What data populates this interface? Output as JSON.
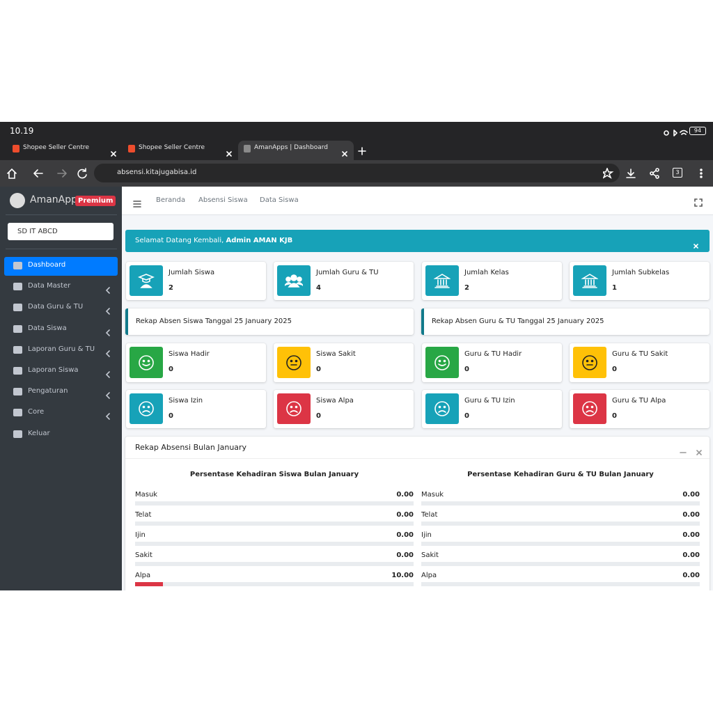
{
  "status_bar": {
    "time": "10.19",
    "battery": "94"
  },
  "browser": {
    "tabs": [
      "Shopee Seller Centre",
      "Shopee Seller Centre",
      "AmanApps | Dashboard"
    ],
    "url": "absensi.kitajugabisa.id",
    "tab_count": "3"
  },
  "sidebar": {
    "brand": "AmanApps",
    "badge": "Premium",
    "school": "SD IT ABCD",
    "menu": [
      "Dashboard",
      "Data Master",
      "Data Guru & TU",
      "Data Siswa",
      "Laporan Guru & TU",
      "Laporan Siswa",
      "Pengaturan",
      "Core",
      "Keluar"
    ]
  },
  "navbar": {
    "links": [
      "Beranda",
      "Absensi Siswa",
      "Data Siswa"
    ]
  },
  "alert": {
    "text": "Selamat Datang Kembali,",
    "name": "Admin AMAN KJB"
  },
  "summary": [
    {
      "label": "Jumlah Siswa",
      "value": 2
    },
    {
      "label": "Jumlah Guru & TU",
      "value": 4
    },
    {
      "label": "Jumlah Kelas",
      "value": 2
    },
    {
      "label": "Jumlah Subkelas",
      "value": 1
    }
  ],
  "callouts": [
    "Rekap Absen Siswa Tanggal 25 January 2025",
    "Rekap Absen Guru & TU Tanggal 25 January 2025"
  ],
  "attendance": [
    {
      "label": "Siswa Hadir",
      "value": 0
    },
    {
      "label": "Siswa Sakit",
      "value": 0
    },
    {
      "label": "Guru & TU Hadir",
      "value": 0
    },
    {
      "label": "Guru & TU Sakit",
      "value": 0
    },
    {
      "label": "Siswa Izin",
      "value": 0
    },
    {
      "label": "Siswa Alpa",
      "value": 0
    },
    {
      "label": "Guru & TU Izin",
      "value": 0
    },
    {
      "label": "Guru & TU Alpa",
      "value": 0
    }
  ],
  "monthly": {
    "title": "Rekap Absensi Bulan January",
    "sections": [
      {
        "title": "Persentase Kehadiran Siswa Bulan January",
        "items": [
          {
            "label": "Masuk",
            "value": "0.00"
          },
          {
            "label": "Telat",
            "value": "0.00"
          },
          {
            "label": "Ijin",
            "value": "0.00"
          },
          {
            "label": "Sakit",
            "value": "0.00"
          },
          {
            "label": "Alpa",
            "value": "10.00"
          }
        ]
      },
      {
        "title": "Persentase Kehadiran Guru & TU Bulan January",
        "items": [
          {
            "label": "Masuk",
            "value": "0.00"
          },
          {
            "label": "Telat",
            "value": "0.00"
          },
          {
            "label": "Ijin",
            "value": "0.00"
          },
          {
            "label": "Sakit",
            "value": "0.00"
          },
          {
            "label": "Alpa",
            "value": "0.00"
          }
        ]
      }
    ]
  }
}
